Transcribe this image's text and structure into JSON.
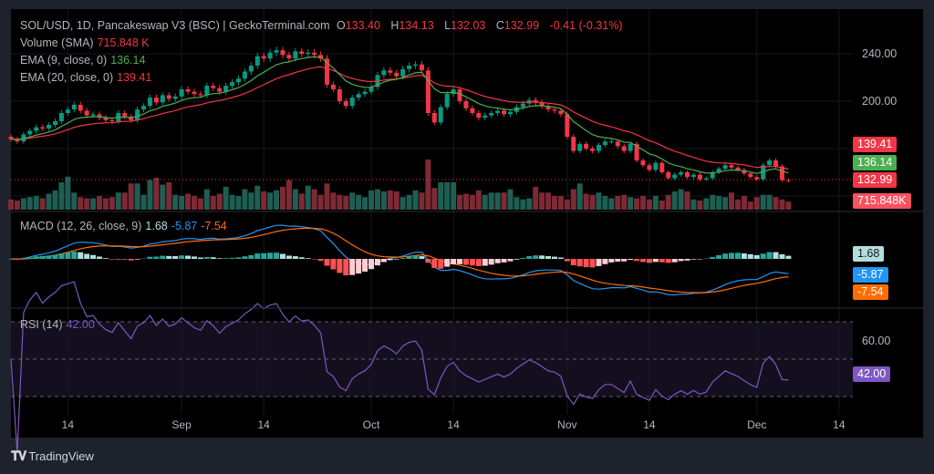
{
  "header": {
    "symbol_line": "SOL/USD, 1D, Pancakeswap V3 (BSC) | GeckoTerminal.com",
    "open_label": "O",
    "open": "133.40",
    "high_label": "H",
    "high": "134.13",
    "low_label": "L",
    "low": "132.03",
    "close_label": "C",
    "close": "132.99",
    "change": "-0.41 (-0.31%)"
  },
  "indicators": {
    "volume": {
      "label": "Volume (SMA)",
      "value": "715.848 K"
    },
    "ema9": {
      "label": "EMA (9, close, 0)",
      "value": "136.14"
    },
    "ema20": {
      "label": "EMA (20, close, 0)",
      "value": "139.41"
    },
    "macd": {
      "label": "MACD (12, 26, close, 9)",
      "hist": "1.68",
      "macd": "-5.87",
      "signal": "-7.54"
    },
    "rsi": {
      "label": "RSI (14)",
      "value": "42.00"
    }
  },
  "badges": {
    "ema20": "139.41",
    "ema9": "136.14",
    "close": "132.99",
    "volume": "715.848K",
    "macd_hist": "1.68",
    "macd": "-5.87",
    "signal": "-7.54",
    "rsi": "42.00"
  },
  "price_axis": [
    "240.00",
    "200.00"
  ],
  "rsi_axis": [
    "60.00"
  ],
  "time_axis": [
    {
      "label": "14",
      "date": "08-14"
    },
    {
      "label": "Sep",
      "date": "09-01"
    },
    {
      "label": "14",
      "date": "09-14"
    },
    {
      "label": "Oct",
      "date": "10-01"
    },
    {
      "label": "14",
      "date": "10-14"
    },
    {
      "label": "Nov",
      "date": "11-01"
    },
    {
      "label": "14",
      "date": "11-14"
    },
    {
      "label": "Dec",
      "date": "12-01"
    },
    {
      "label": "14",
      "date": "12-14"
    }
  ],
  "brand": "TradingView",
  "colors": {
    "up": "#089981",
    "down": "#f23645",
    "vol_up": "#1f5e53",
    "vol_down": "#7d2a35",
    "ema9": "#4caf50",
    "ema20": "#f23645",
    "macd": "#2196f3",
    "signal": "#ff6d00",
    "hist_up_strong": "#26a69a",
    "hist_up_weak": "#b2dfdb",
    "hist_down_strong": "#ff5252",
    "hist_down_weak": "#ffcdd2",
    "rsi": "#7e57c2",
    "rsi_band": "#140f1f"
  },
  "chart_data": {
    "type": "candlestick",
    "interval": "1D",
    "price_ticks": [
      240,
      200
    ],
    "rsi_levels": [
      70,
      50,
      30
    ],
    "dates": [
      "08-05",
      "08-06",
      "08-07",
      "08-08",
      "08-09",
      "08-10",
      "08-11",
      "08-12",
      "08-13",
      "08-14",
      "08-15",
      "08-16",
      "08-17",
      "08-18",
      "08-19",
      "08-20",
      "08-21",
      "08-22",
      "08-23",
      "08-24",
      "08-25",
      "08-26",
      "08-27",
      "08-28",
      "08-29",
      "08-30",
      "08-31",
      "09-01",
      "09-02",
      "09-03",
      "09-04",
      "09-05",
      "09-06",
      "09-07",
      "09-08",
      "09-09",
      "09-10",
      "09-11",
      "09-12",
      "09-13",
      "09-14",
      "09-15",
      "09-16",
      "09-17",
      "09-18",
      "09-19",
      "09-20",
      "09-21",
      "09-22",
      "09-23",
      "09-24",
      "09-25",
      "09-26",
      "09-27",
      "09-28",
      "09-29",
      "09-30",
      "10-01",
      "10-02",
      "10-03",
      "10-04",
      "10-05",
      "10-06",
      "10-07",
      "10-08",
      "10-09",
      "10-10",
      "10-11",
      "10-12",
      "10-13",
      "10-14",
      "10-15",
      "10-16",
      "10-17",
      "10-18",
      "10-19",
      "10-20",
      "10-21",
      "10-22",
      "10-23",
      "10-24",
      "10-25",
      "10-26",
      "10-27",
      "10-28",
      "10-29",
      "10-30",
      "10-31",
      "11-01",
      "11-02",
      "11-03",
      "11-04",
      "11-05",
      "11-06",
      "11-07",
      "11-08",
      "11-09",
      "11-10",
      "11-11",
      "11-12",
      "11-13",
      "11-14",
      "11-15",
      "11-16",
      "11-17",
      "11-18",
      "11-19",
      "11-20",
      "11-21",
      "11-22",
      "11-23",
      "11-24",
      "11-25",
      "11-26",
      "11-27",
      "11-28",
      "11-29",
      "11-30",
      "12-01",
      "12-02",
      "12-03",
      "12-04",
      "12-05",
      "12-06"
    ],
    "close": [
      168,
      166,
      172,
      175,
      178,
      177,
      180,
      183,
      190,
      193,
      197,
      192,
      188,
      189,
      186,
      184,
      183,
      190,
      187,
      184,
      193,
      196,
      203,
      199,
      205,
      202,
      204,
      210,
      208,
      206,
      205,
      213,
      211,
      208,
      213,
      216,
      219,
      225,
      230,
      238,
      236,
      241,
      243,
      239,
      236,
      242,
      240,
      241,
      239,
      236,
      214,
      210,
      200,
      196,
      203,
      206,
      208,
      212,
      222,
      226,
      224,
      221,
      227,
      230,
      231,
      226,
      190,
      182,
      195,
      206,
      210,
      200,
      194,
      190,
      186,
      188,
      190,
      192,
      189,
      191,
      195,
      198,
      201,
      199,
      196,
      193,
      192,
      189,
      170,
      158,
      164,
      160,
      158,
      163,
      166,
      166,
      162,
      158,
      164,
      150,
      146,
      142,
      148,
      140,
      135,
      138,
      140,
      136,
      138,
      134,
      135,
      140,
      143,
      146,
      144,
      142,
      139,
      136,
      134,
      146,
      150,
      145,
      133.4,
      132.99
    ],
    "volume_k": [
      900,
      800,
      1000,
      1100,
      1200,
      1000,
      1400,
      1700,
      2400,
      2900,
      1500,
      1100,
      1000,
      1000,
      1200,
      1000,
      1100,
      1500,
      1500,
      2300,
      2300,
      1300,
      2600,
      2800,
      2200,
      2400,
      1300,
      1200,
      1400,
      1200,
      1000,
      1800,
      1200,
      1400,
      2000,
      1300,
      1200,
      1800,
      1500,
      2100,
      1600,
      1500,
      1700,
      2000,
      2600,
      1800,
      1400,
      2100,
      1800,
      1300,
      2300,
      1500,
      1300,
      1200,
      1500,
      1300,
      1100,
      1700,
      1800,
      1600,
      1700,
      1600,
      1100,
      1300,
      1700,
      1500,
      4400,
      1900,
      2400,
      2400,
      2400,
      1300,
      1400,
      1300,
      1700,
      1300,
      1500,
      1500,
      1500,
      1800,
      1100,
      900,
      1000,
      2000,
      1500,
      1500,
      1200,
      1200,
      900,
      1800,
      2300,
      1400,
      1300,
      1500,
      1200,
      1000,
      1200,
      1300,
      1100,
      1000,
      1200,
      900,
      1200,
      800,
      1300,
      1600,
      1800,
      1600,
      900,
      800,
      1000,
      1300,
      1200,
      1100,
      1500,
      900,
      1200,
      700,
      1100,
      1300,
      1300,
      1100,
      900,
      716
    ]
  }
}
